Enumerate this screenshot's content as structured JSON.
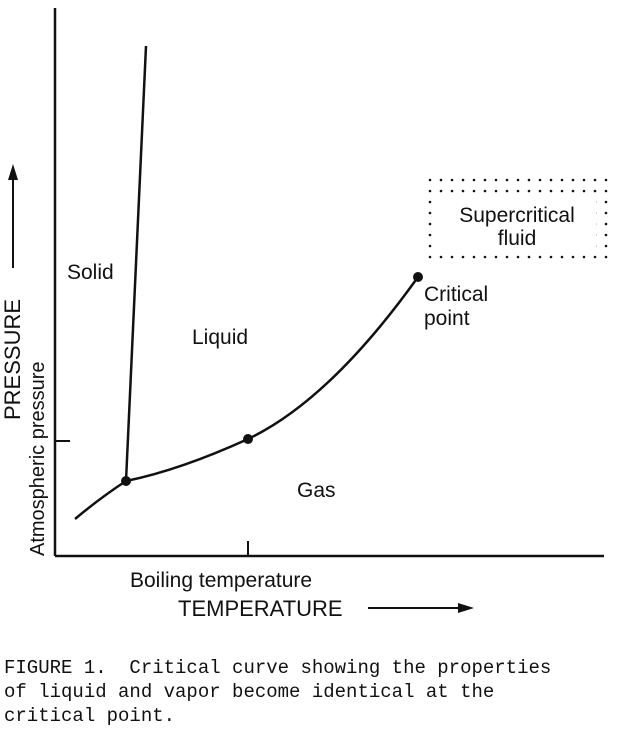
{
  "diagram": {
    "regions": {
      "solid": "Solid",
      "liquid": "Liquid",
      "gas": "Gas",
      "supercritical_line1": "Supercritical",
      "supercritical_line2": "fluid"
    },
    "points": {
      "critical_line1": "Critical",
      "critical_line2": "point"
    },
    "axes": {
      "y_title": "PRESSURE",
      "y_tick_label": "Atmospheric pressure",
      "x_tick_label": "Boiling temperature",
      "x_title": "TEMPERATURE"
    }
  },
  "caption": "FIGURE 1.  Critical curve showing the properties\nof liquid and vapor become identical at the\ncritical point."
}
